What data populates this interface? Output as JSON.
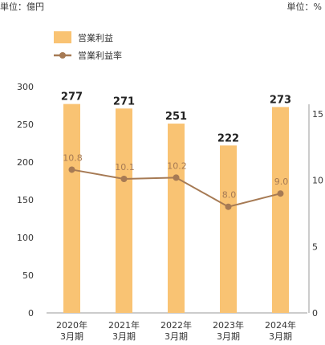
{
  "units": {
    "left": "単位：億円",
    "right": "単位：%"
  },
  "colors": {
    "bar": "#f9c373",
    "line": "#a67a54",
    "axis": "#999999",
    "text": "#333333"
  },
  "chart_data": {
    "type": "bar",
    "categories": [
      [
        "2020年",
        "3月期"
      ],
      [
        "2021年",
        "3月期"
      ],
      [
        "2022年",
        "3月期"
      ],
      [
        "2023年",
        "3月期"
      ],
      [
        "2024年",
        "3月期"
      ]
    ],
    "series": [
      {
        "name": "営業利益",
        "type": "bar",
        "axis": "left",
        "values": [
          277,
          271,
          251,
          222,
          273
        ],
        "labels": [
          "277",
          "271",
          "251",
          "222",
          "273"
        ]
      },
      {
        "name": "営業利益率",
        "type": "line",
        "axis": "right",
        "values": [
          10.8,
          10.1,
          10.2,
          8.0,
          9.0
        ],
        "labels": [
          "10.8",
          "10.1",
          "10.2",
          "8.0",
          "9.0"
        ]
      }
    ],
    "y_left": {
      "ticks": [
        "0",
        "50",
        "100",
        "150",
        "200",
        "250",
        "300"
      ],
      "lim": [
        0,
        300
      ]
    },
    "y_right": {
      "ticks": [
        "0",
        "5",
        "10",
        "15"
      ],
      "lim": [
        0,
        16
      ]
    },
    "legend": {
      "position": "top-left"
    },
    "grid": false
  }
}
